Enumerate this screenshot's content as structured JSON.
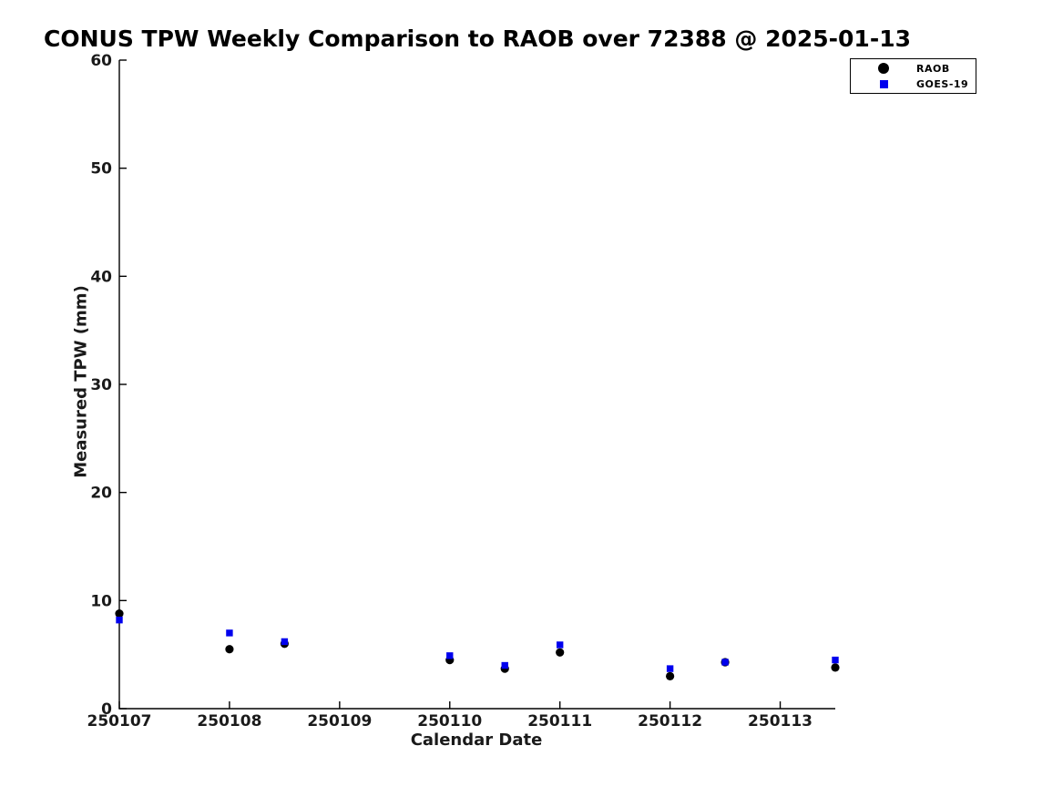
{
  "figure": {
    "background_color": "#ffffff",
    "text_color": "#1a1a1a"
  },
  "chart_data": {
    "type": "scatter",
    "title": "CONUS TPW Weekly Comparison to RAOB over 72388 @ 2025-01-13",
    "xlabel": "Calendar Date",
    "ylabel": "Measured TPW (mm)",
    "xlim": [
      250107,
      250113.5
    ],
    "ylim": [
      0,
      60
    ],
    "xticks": [
      250107,
      250108,
      250109,
      250110,
      250111,
      250112,
      250113
    ],
    "xtick_labels": [
      "250107",
      "250108",
      "250109",
      "250110",
      "250111",
      "250112",
      "250113"
    ],
    "yticks": [
      0,
      10,
      20,
      30,
      40,
      50,
      60
    ],
    "ytick_labels": [
      "0",
      "10",
      "20",
      "30",
      "40",
      "50",
      "60"
    ],
    "grid": false,
    "legend": {
      "position": "top-right",
      "entries": [
        "RAOB",
        "GOES-19"
      ]
    },
    "series": [
      {
        "name": "RAOB",
        "marker": "circle",
        "color": "#000000",
        "x": [
          250107,
          250108,
          250108.5,
          250110,
          250110.5,
          250111,
          250112,
          250112.5,
          250113.5
        ],
        "y": [
          8.8,
          5.5,
          6.0,
          4.5,
          3.7,
          5.2,
          3.0,
          4.3,
          3.8
        ]
      },
      {
        "name": "GOES-19",
        "marker": "square",
        "color": "#0000EE",
        "x": [
          250107,
          250108,
          250108.5,
          250110,
          250110.5,
          250111,
          250112,
          250112.5,
          250113.5
        ],
        "y": [
          8.2,
          7.0,
          6.2,
          4.9,
          4.0,
          5.9,
          3.7,
          4.3,
          4.5
        ]
      }
    ]
  }
}
